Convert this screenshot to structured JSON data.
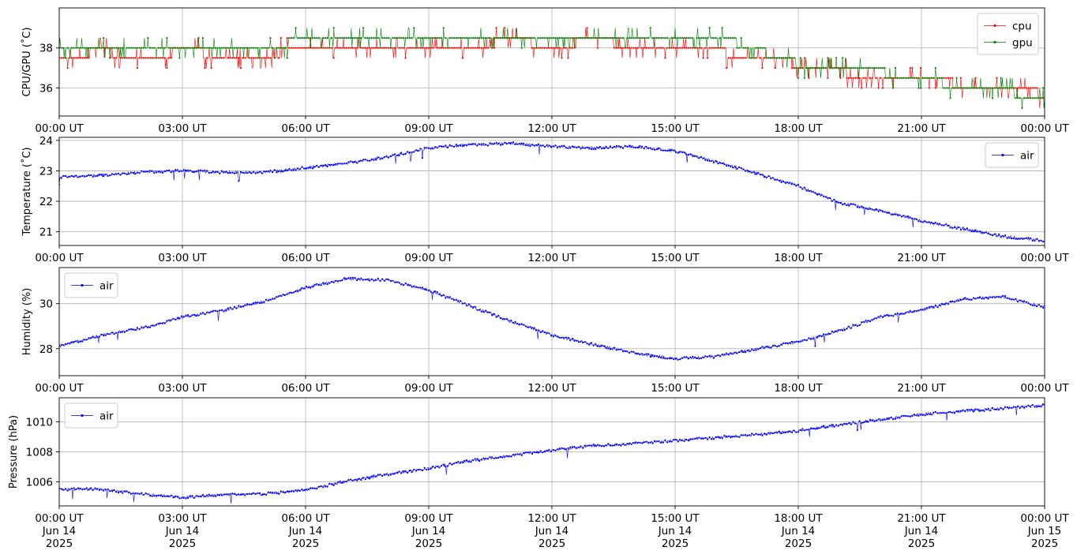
{
  "colors": {
    "cpu": "#ff0000",
    "gpu": "#008000",
    "air": "#0000ff",
    "grid": "#b0b0b0"
  },
  "chart_data": [
    {
      "type": "line",
      "ylabel": "CPU/GPU (˚C)",
      "x_ticks": [
        "00:00 UT",
        "03:00 UT",
        "06:00 UT",
        "09:00 UT",
        "12:00 UT",
        "15:00 UT",
        "18:00 UT",
        "21:00 UT",
        "00:00 UT"
      ],
      "xlim_hours": [
        0,
        24
      ],
      "ylim": [
        34.6,
        40.0
      ],
      "y_ticks": [
        36,
        38
      ],
      "grid": true,
      "legend": "upper right",
      "series": [
        {
          "name": "cpu",
          "color": "#ff0000",
          "x_hours": [
            0,
            1,
            2,
            3,
            4,
            5,
            6,
            7,
            8,
            9,
            10,
            11,
            12,
            13,
            14,
            15,
            16,
            17,
            18,
            19,
            20,
            21,
            22,
            23,
            24
          ],
          "values": [
            37.6,
            37.8,
            37.6,
            37.8,
            37.7,
            37.6,
            38.0,
            38.0,
            38.0,
            38.1,
            38.2,
            38.3,
            38.2,
            38.3,
            38.2,
            38.1,
            37.8,
            37.6,
            37.2,
            36.8,
            36.5,
            36.4,
            36.2,
            36.0,
            35.7
          ]
        },
        {
          "name": "gpu",
          "color": "#008000",
          "x_hours": [
            0,
            1,
            2,
            3,
            4,
            5,
            6,
            7,
            8,
            9,
            10,
            11,
            12,
            13,
            14,
            15,
            16,
            17,
            18,
            19,
            20,
            21,
            22,
            23,
            24
          ],
          "values": [
            37.9,
            38.0,
            38.0,
            38.0,
            38.0,
            37.9,
            38.5,
            38.5,
            38.6,
            38.6,
            38.6,
            38.6,
            38.6,
            38.6,
            38.6,
            38.6,
            38.6,
            37.9,
            37.2,
            36.9,
            36.8,
            36.4,
            36.1,
            35.8,
            35.6
          ]
        }
      ]
    },
    {
      "type": "line",
      "ylabel": "Temperature (˚C)",
      "x_ticks": [
        "00:00 UT",
        "03:00 UT",
        "06:00 UT",
        "09:00 UT",
        "12:00 UT",
        "15:00 UT",
        "18:00 UT",
        "21:00 UT",
        "00:00 UT"
      ],
      "xlim_hours": [
        0,
        24
      ],
      "ylim": [
        20.55,
        24.1
      ],
      "y_ticks": [
        21,
        22,
        23,
        24
      ],
      "grid": true,
      "legend": "upper right",
      "series": [
        {
          "name": "air",
          "color": "#0000ff",
          "x_hours": [
            0,
            1,
            2,
            3,
            4,
            5,
            6,
            7,
            8,
            9,
            10,
            11,
            12,
            13,
            14,
            15,
            16,
            17,
            18,
            19,
            20,
            21,
            22,
            23,
            24
          ],
          "values": [
            22.8,
            22.85,
            22.95,
            23.0,
            22.95,
            22.95,
            23.1,
            23.25,
            23.45,
            23.75,
            23.85,
            23.9,
            23.8,
            23.75,
            23.8,
            23.65,
            23.3,
            22.9,
            22.5,
            21.95,
            21.7,
            21.35,
            21.1,
            20.85,
            20.7
          ]
        }
      ]
    },
    {
      "type": "line",
      "ylabel": "Humidity (%)",
      "x_ticks": [
        "00:00 UT",
        "03:00 UT",
        "06:00 UT",
        "09:00 UT",
        "12:00 UT",
        "15:00 UT",
        "18:00 UT",
        "21:00 UT",
        "00:00 UT"
      ],
      "xlim_hours": [
        0,
        24
      ],
      "ylim": [
        26.8,
        31.6
      ],
      "y_ticks": [
        28,
        30
      ],
      "grid": true,
      "legend": "upper left",
      "series": [
        {
          "name": "air",
          "color": "#0000ff",
          "x_hours": [
            0,
            1,
            2,
            3,
            4,
            5,
            6,
            7,
            8,
            9,
            10,
            11,
            12,
            13,
            14,
            15,
            16,
            17,
            18,
            19,
            20,
            21,
            22,
            23,
            24
          ],
          "values": [
            28.1,
            28.6,
            28.9,
            29.4,
            29.7,
            30.1,
            30.7,
            31.1,
            31.05,
            30.6,
            29.9,
            29.2,
            28.6,
            28.2,
            27.8,
            27.55,
            27.65,
            28.0,
            28.3,
            28.8,
            29.4,
            29.7,
            30.2,
            30.3,
            29.85
          ]
        }
      ]
    },
    {
      "type": "line",
      "ylabel": "Pressure (hPa)",
      "x_ticks": [
        "00:00 UT\nJun 14\n2025",
        "03:00 UT\nJun 14\n2025",
        "06:00 UT\nJun 14\n2025",
        "09:00 UT\nJun 14\n2025",
        "12:00 UT\nJun 14\n2025",
        "15:00 UT\nJun 14\n2025",
        "18:00 UT\nJun 14\n2025",
        "21:00 UT\nJun 14\n2025",
        "00:00 UT\nJun 15\n2025"
      ],
      "xlim_hours": [
        0,
        24
      ],
      "ylim": [
        1004.4,
        1011.6
      ],
      "y_ticks": [
        1006,
        1008,
        1010
      ],
      "grid": true,
      "legend": "upper left",
      "series": [
        {
          "name": "air",
          "color": "#0000ff",
          "x_hours": [
            0,
            1,
            2,
            3,
            4,
            5,
            6,
            7,
            8,
            9,
            10,
            11,
            12,
            13,
            14,
            15,
            16,
            17,
            18,
            19,
            20,
            21,
            22,
            23,
            24
          ],
          "values": [
            1005.5,
            1005.5,
            1005.2,
            1004.95,
            1005.15,
            1005.2,
            1005.45,
            1006.05,
            1006.5,
            1006.9,
            1007.4,
            1007.75,
            1008.1,
            1008.4,
            1008.55,
            1008.75,
            1008.95,
            1009.15,
            1009.4,
            1009.8,
            1010.15,
            1010.5,
            1010.7,
            1010.9,
            1011.1
          ]
        }
      ]
    }
  ]
}
